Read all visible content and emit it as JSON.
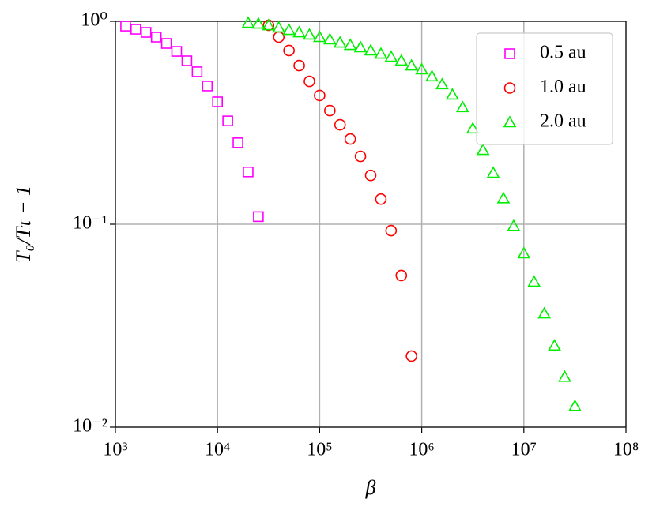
{
  "chart_data": {
    "type": "scatter",
    "x_label": "β",
    "y_label": "T₀/Tτ − 1",
    "x_log": true,
    "y_log": true,
    "grid": true,
    "legend_position": "upper right",
    "xlim": [
      1000,
      100000000
    ],
    "ylim": [
      0.01,
      1
    ],
    "xticks": [
      {
        "value": 1000,
        "label": "10³"
      },
      {
        "value": 10000,
        "label": "10⁴"
      },
      {
        "value": 100000,
        "label": "10⁵"
      },
      {
        "value": 1000000,
        "label": "10⁶"
      },
      {
        "value": 10000000,
        "label": "10⁷"
      },
      {
        "value": 100000000,
        "label": "10⁸"
      }
    ],
    "yticks": [
      {
        "value": 0.01,
        "label": "10⁻²"
      },
      {
        "value": 0.1,
        "label": "10⁻¹"
      },
      {
        "value": 1,
        "label": "10⁰"
      }
    ],
    "series": [
      {
        "name": "0.5 au",
        "color": "#ff00ff",
        "marker": "square",
        "x": [
          1259,
          1585,
          1995,
          2512,
          3162,
          3981,
          5012,
          6310,
          7943,
          10000,
          12589,
          15849,
          19953,
          25119
        ],
        "values": [
          0.947,
          0.914,
          0.882,
          0.836,
          0.778,
          0.711,
          0.639,
          0.564,
          0.48,
          0.401,
          0.323,
          0.252,
          0.181,
          0.109
        ]
      },
      {
        "name": "1.0 au",
        "color": "#ff0000",
        "marker": "circle",
        "x": [
          31623,
          39811,
          50119,
          63096,
          79433,
          100000,
          125893,
          158489,
          199526,
          251189,
          316228,
          398107,
          501187,
          630957,
          794328
        ],
        "values": [
          0.956,
          0.836,
          0.718,
          0.605,
          0.506,
          0.431,
          0.363,
          0.309,
          0.263,
          0.216,
          0.174,
          0.133,
          0.093,
          0.0559,
          0.0224
        ]
      },
      {
        "name": "2.0 au",
        "color": "#00ee00",
        "marker": "triangle",
        "x": [
          19953,
          25119,
          31623,
          39811,
          50119,
          63096,
          79433,
          100000,
          125893,
          158489,
          199526,
          251189,
          316228,
          398107,
          501187,
          630957,
          794328,
          1000000,
          1258925,
          1584893,
          1995262,
          2511886,
          3162278,
          3981072,
          5011872,
          6309573,
          7943282,
          10000000,
          12589254,
          15848932,
          19952623,
          25118864,
          31622777
        ],
        "values": [
          0.982,
          0.973,
          0.956,
          0.931,
          0.906,
          0.882,
          0.859,
          0.836,
          0.814,
          0.785,
          0.764,
          0.744,
          0.718,
          0.692,
          0.668,
          0.639,
          0.605,
          0.579,
          0.535,
          0.489,
          0.435,
          0.377,
          0.296,
          0.232,
          0.179,
          0.134,
          0.098,
          0.0718,
          0.052,
          0.0363,
          0.0252,
          0.0177,
          0.0127
        ]
      }
    ]
  }
}
